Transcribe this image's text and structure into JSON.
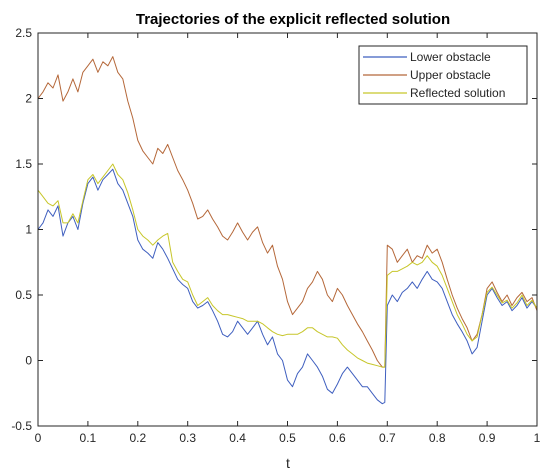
{
  "chart_data": {
    "type": "line",
    "title": "Trajectories of the explicit reflected solution",
    "xlabel": "t",
    "ylabel": "",
    "xlim": [
      0,
      1
    ],
    "ylim": [
      -0.5,
      2.5
    ],
    "xticks": [
      "0",
      "0.1",
      "0.2",
      "0.3",
      "0.4",
      "0.5",
      "0.6",
      "0.7",
      "0.8",
      "0.9",
      "1"
    ],
    "yticks": [
      "-0.5",
      "0",
      "0.5",
      "1",
      "1.5",
      "2",
      "2.5"
    ],
    "grid": false,
    "legend_position": "top-right",
    "series": [
      {
        "name": "Lower obstacle",
        "color": "#3f5fbf",
        "points": [
          [
            0,
            1.0
          ],
          [
            0.01,
            1.05
          ],
          [
            0.02,
            1.15
          ],
          [
            0.03,
            1.1
          ],
          [
            0.04,
            1.18
          ],
          [
            0.05,
            0.95
          ],
          [
            0.06,
            1.05
          ],
          [
            0.07,
            1.1
          ],
          [
            0.08,
            1.0
          ],
          [
            0.09,
            1.2
          ],
          [
            0.1,
            1.35
          ],
          [
            0.11,
            1.4
          ],
          [
            0.12,
            1.3
          ],
          [
            0.13,
            1.38
          ],
          [
            0.14,
            1.42
          ],
          [
            0.15,
            1.46
          ],
          [
            0.16,
            1.35
          ],
          [
            0.17,
            1.3
          ],
          [
            0.18,
            1.2
          ],
          [
            0.19,
            1.1
          ],
          [
            0.2,
            0.92
          ],
          [
            0.21,
            0.85
          ],
          [
            0.22,
            0.82
          ],
          [
            0.23,
            0.78
          ],
          [
            0.24,
            0.9
          ],
          [
            0.25,
            0.85
          ],
          [
            0.26,
            0.78
          ],
          [
            0.27,
            0.7
          ],
          [
            0.28,
            0.62
          ],
          [
            0.29,
            0.58
          ],
          [
            0.3,
            0.55
          ],
          [
            0.31,
            0.45
          ],
          [
            0.32,
            0.4
          ],
          [
            0.33,
            0.42
          ],
          [
            0.34,
            0.45
          ],
          [
            0.35,
            0.38
          ],
          [
            0.36,
            0.3
          ],
          [
            0.37,
            0.2
          ],
          [
            0.38,
            0.18
          ],
          [
            0.39,
            0.22
          ],
          [
            0.4,
            0.3
          ],
          [
            0.41,
            0.25
          ],
          [
            0.42,
            0.2
          ],
          [
            0.43,
            0.25
          ],
          [
            0.44,
            0.3
          ],
          [
            0.45,
            0.2
          ],
          [
            0.46,
            0.12
          ],
          [
            0.47,
            0.18
          ],
          [
            0.48,
            0.05
          ],
          [
            0.49,
            0.0
          ],
          [
            0.5,
            -0.15
          ],
          [
            0.51,
            -0.2
          ],
          [
            0.52,
            -0.1
          ],
          [
            0.53,
            -0.05
          ],
          [
            0.54,
            0.05
          ],
          [
            0.55,
            0.0
          ],
          [
            0.56,
            -0.05
          ],
          [
            0.57,
            -0.12
          ],
          [
            0.58,
            -0.22
          ],
          [
            0.59,
            -0.25
          ],
          [
            0.6,
            -0.18
          ],
          [
            0.61,
            -0.1
          ],
          [
            0.62,
            -0.05
          ],
          [
            0.63,
            -0.1
          ],
          [
            0.64,
            -0.15
          ],
          [
            0.65,
            -0.2
          ],
          [
            0.66,
            -0.2
          ],
          [
            0.67,
            -0.25
          ],
          [
            0.68,
            -0.3
          ],
          [
            0.69,
            -0.33
          ],
          [
            0.695,
            -0.32
          ],
          [
            0.7,
            0.42
          ],
          [
            0.71,
            0.5
          ],
          [
            0.72,
            0.45
          ],
          [
            0.73,
            0.52
          ],
          [
            0.74,
            0.55
          ],
          [
            0.75,
            0.6
          ],
          [
            0.76,
            0.55
          ],
          [
            0.77,
            0.62
          ],
          [
            0.78,
            0.68
          ],
          [
            0.79,
            0.62
          ],
          [
            0.8,
            0.6
          ],
          [
            0.81,
            0.55
          ],
          [
            0.82,
            0.45
          ],
          [
            0.83,
            0.35
          ],
          [
            0.84,
            0.28
          ],
          [
            0.85,
            0.22
          ],
          [
            0.86,
            0.15
          ],
          [
            0.87,
            0.05
          ],
          [
            0.88,
            0.1
          ],
          [
            0.89,
            0.3
          ],
          [
            0.9,
            0.5
          ],
          [
            0.91,
            0.55
          ],
          [
            0.92,
            0.48
          ],
          [
            0.93,
            0.42
          ],
          [
            0.94,
            0.45
          ],
          [
            0.95,
            0.38
          ],
          [
            0.96,
            0.42
          ],
          [
            0.97,
            0.48
          ],
          [
            0.98,
            0.4
          ],
          [
            0.99,
            0.45
          ],
          [
            1.0,
            0.4
          ]
        ]
      },
      {
        "name": "Upper obstacle",
        "color": "#b5683a",
        "points": [
          [
            0,
            2.0
          ],
          [
            0.01,
            2.05
          ],
          [
            0.02,
            2.12
          ],
          [
            0.03,
            2.08
          ],
          [
            0.04,
            2.18
          ],
          [
            0.05,
            1.98
          ],
          [
            0.06,
            2.05
          ],
          [
            0.07,
            2.15
          ],
          [
            0.08,
            2.05
          ],
          [
            0.09,
            2.2
          ],
          [
            0.1,
            2.25
          ],
          [
            0.11,
            2.3
          ],
          [
            0.12,
            2.2
          ],
          [
            0.13,
            2.28
          ],
          [
            0.14,
            2.25
          ],
          [
            0.15,
            2.32
          ],
          [
            0.16,
            2.2
          ],
          [
            0.17,
            2.15
          ],
          [
            0.18,
            1.98
          ],
          [
            0.19,
            1.85
          ],
          [
            0.2,
            1.68
          ],
          [
            0.21,
            1.6
          ],
          [
            0.22,
            1.55
          ],
          [
            0.23,
            1.5
          ],
          [
            0.24,
            1.62
          ],
          [
            0.25,
            1.58
          ],
          [
            0.26,
            1.65
          ],
          [
            0.27,
            1.55
          ],
          [
            0.28,
            1.45
          ],
          [
            0.29,
            1.38
          ],
          [
            0.3,
            1.3
          ],
          [
            0.31,
            1.2
          ],
          [
            0.32,
            1.08
          ],
          [
            0.33,
            1.1
          ],
          [
            0.34,
            1.15
          ],
          [
            0.35,
            1.08
          ],
          [
            0.36,
            1.02
          ],
          [
            0.37,
            0.95
          ],
          [
            0.38,
            0.92
          ],
          [
            0.39,
            0.98
          ],
          [
            0.4,
            1.05
          ],
          [
            0.41,
            0.98
          ],
          [
            0.42,
            0.92
          ],
          [
            0.43,
            0.98
          ],
          [
            0.44,
            1.02
          ],
          [
            0.45,
            0.9
          ],
          [
            0.46,
            0.82
          ],
          [
            0.47,
            0.88
          ],
          [
            0.48,
            0.72
          ],
          [
            0.49,
            0.62
          ],
          [
            0.5,
            0.45
          ],
          [
            0.51,
            0.35
          ],
          [
            0.52,
            0.4
          ],
          [
            0.53,
            0.45
          ],
          [
            0.54,
            0.55
          ],
          [
            0.55,
            0.6
          ],
          [
            0.56,
            0.68
          ],
          [
            0.57,
            0.62
          ],
          [
            0.58,
            0.5
          ],
          [
            0.59,
            0.45
          ],
          [
            0.6,
            0.55
          ],
          [
            0.61,
            0.5
          ],
          [
            0.62,
            0.42
          ],
          [
            0.63,
            0.35
          ],
          [
            0.64,
            0.28
          ],
          [
            0.65,
            0.22
          ],
          [
            0.66,
            0.15
          ],
          [
            0.67,
            0.08
          ],
          [
            0.68,
            0.0
          ],
          [
            0.69,
            -0.05
          ],
          [
            0.695,
            -0.05
          ],
          [
            0.7,
            0.88
          ],
          [
            0.71,
            0.85
          ],
          [
            0.72,
            0.75
          ],
          [
            0.73,
            0.8
          ],
          [
            0.74,
            0.85
          ],
          [
            0.75,
            0.75
          ],
          [
            0.76,
            0.8
          ],
          [
            0.77,
            0.78
          ],
          [
            0.78,
            0.88
          ],
          [
            0.79,
            0.82
          ],
          [
            0.8,
            0.85
          ],
          [
            0.81,
            0.75
          ],
          [
            0.82,
            0.62
          ],
          [
            0.83,
            0.5
          ],
          [
            0.84,
            0.4
          ],
          [
            0.85,
            0.32
          ],
          [
            0.86,
            0.25
          ],
          [
            0.87,
            0.15
          ],
          [
            0.88,
            0.2
          ],
          [
            0.89,
            0.35
          ],
          [
            0.9,
            0.55
          ],
          [
            0.91,
            0.6
          ],
          [
            0.92,
            0.52
          ],
          [
            0.93,
            0.45
          ],
          [
            0.94,
            0.5
          ],
          [
            0.95,
            0.42
          ],
          [
            0.96,
            0.48
          ],
          [
            0.97,
            0.52
          ],
          [
            0.98,
            0.45
          ],
          [
            0.99,
            0.48
          ],
          [
            1.0,
            0.38
          ]
        ]
      },
      {
        "name": "Reflected solution",
        "color": "#c7c62a",
        "points": [
          [
            0,
            1.3
          ],
          [
            0.01,
            1.25
          ],
          [
            0.02,
            1.2
          ],
          [
            0.03,
            1.18
          ],
          [
            0.04,
            1.22
          ],
          [
            0.05,
            1.05
          ],
          [
            0.06,
            1.05
          ],
          [
            0.07,
            1.12
          ],
          [
            0.08,
            1.05
          ],
          [
            0.09,
            1.22
          ],
          [
            0.1,
            1.38
          ],
          [
            0.11,
            1.42
          ],
          [
            0.12,
            1.35
          ],
          [
            0.13,
            1.4
          ],
          [
            0.14,
            1.45
          ],
          [
            0.15,
            1.5
          ],
          [
            0.16,
            1.42
          ],
          [
            0.17,
            1.38
          ],
          [
            0.18,
            1.28
          ],
          [
            0.19,
            1.15
          ],
          [
            0.2,
            1.0
          ],
          [
            0.21,
            0.95
          ],
          [
            0.22,
            0.92
          ],
          [
            0.23,
            0.88
          ],
          [
            0.24,
            0.92
          ],
          [
            0.25,
            0.95
          ],
          [
            0.26,
            0.97
          ],
          [
            0.27,
            0.75
          ],
          [
            0.28,
            0.68
          ],
          [
            0.29,
            0.62
          ],
          [
            0.3,
            0.6
          ],
          [
            0.31,
            0.5
          ],
          [
            0.32,
            0.42
          ],
          [
            0.33,
            0.45
          ],
          [
            0.34,
            0.48
          ],
          [
            0.35,
            0.42
          ],
          [
            0.36,
            0.38
          ],
          [
            0.37,
            0.35
          ],
          [
            0.38,
            0.35
          ],
          [
            0.39,
            0.34
          ],
          [
            0.4,
            0.33
          ],
          [
            0.41,
            0.32
          ],
          [
            0.42,
            0.3
          ],
          [
            0.43,
            0.3
          ],
          [
            0.44,
            0.3
          ],
          [
            0.45,
            0.28
          ],
          [
            0.46,
            0.25
          ],
          [
            0.47,
            0.22
          ],
          [
            0.48,
            0.2
          ],
          [
            0.49,
            0.19
          ],
          [
            0.5,
            0.2
          ],
          [
            0.51,
            0.2
          ],
          [
            0.52,
            0.2
          ],
          [
            0.53,
            0.22
          ],
          [
            0.54,
            0.25
          ],
          [
            0.55,
            0.25
          ],
          [
            0.56,
            0.22
          ],
          [
            0.57,
            0.2
          ],
          [
            0.58,
            0.18
          ],
          [
            0.59,
            0.18
          ],
          [
            0.6,
            0.17
          ],
          [
            0.61,
            0.12
          ],
          [
            0.62,
            0.08
          ],
          [
            0.63,
            0.05
          ],
          [
            0.64,
            0.02
          ],
          [
            0.65,
            0.0
          ],
          [
            0.66,
            -0.02
          ],
          [
            0.67,
            -0.03
          ],
          [
            0.68,
            -0.04
          ],
          [
            0.69,
            -0.05
          ],
          [
            0.695,
            -0.05
          ],
          [
            0.7,
            0.65
          ],
          [
            0.71,
            0.68
          ],
          [
            0.72,
            0.68
          ],
          [
            0.73,
            0.7
          ],
          [
            0.74,
            0.72
          ],
          [
            0.75,
            0.75
          ],
          [
            0.76,
            0.73
          ],
          [
            0.77,
            0.75
          ],
          [
            0.78,
            0.8
          ],
          [
            0.79,
            0.75
          ],
          [
            0.8,
            0.72
          ],
          [
            0.81,
            0.65
          ],
          [
            0.82,
            0.55
          ],
          [
            0.83,
            0.45
          ],
          [
            0.84,
            0.35
          ],
          [
            0.85,
            0.28
          ],
          [
            0.86,
            0.2
          ],
          [
            0.87,
            0.15
          ],
          [
            0.88,
            0.18
          ],
          [
            0.89,
            0.35
          ],
          [
            0.9,
            0.52
          ],
          [
            0.91,
            0.56
          ],
          [
            0.92,
            0.5
          ],
          [
            0.93,
            0.44
          ],
          [
            0.94,
            0.46
          ],
          [
            0.95,
            0.4
          ],
          [
            0.96,
            0.44
          ],
          [
            0.97,
            0.5
          ],
          [
            0.98,
            0.42
          ],
          [
            0.99,
            0.46
          ],
          [
            1.0,
            0.4
          ]
        ]
      }
    ]
  }
}
